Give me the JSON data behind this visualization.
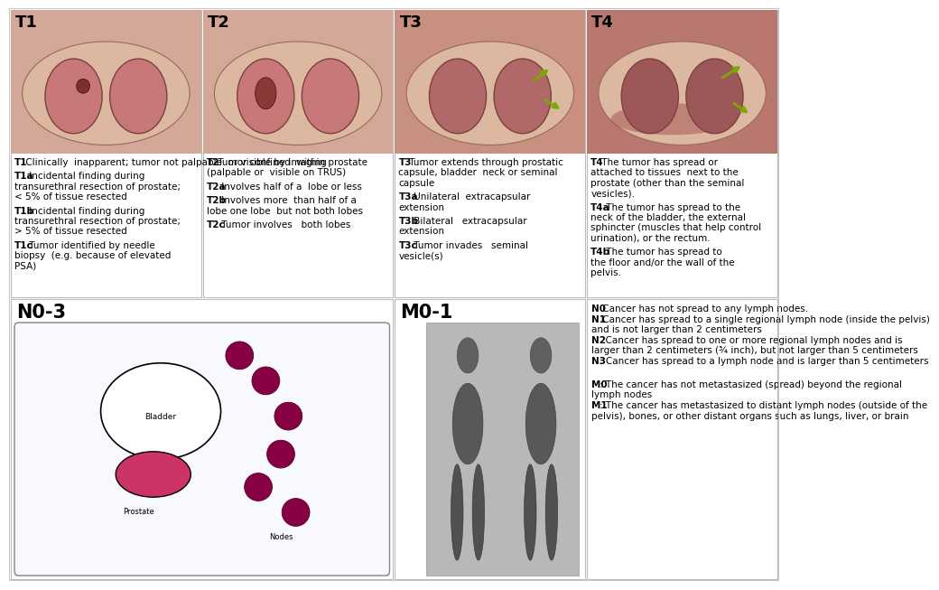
{
  "background_color": "#ffffff",
  "border_color": "#bbbbbb",
  "panels": {
    "top": {
      "keys": [
        "T1",
        "T2",
        "T3",
        "T4"
      ],
      "labels": [
        "T1",
        "T2",
        "T3",
        "T4"
      ],
      "texts": [
        [
          [
            "T1",
            " Clinically  inapparent; tumor not palpable  or visible by imaging"
          ],
          [
            "T1a",
            " Incidental finding during\ntransurethral resection of prostate;\n< 5% of tissue resected"
          ],
          [
            "T1b",
            " Incidental finding during\ntransurethral resection of prostate;\n> 5% of tissue resected"
          ],
          [
            "T1c",
            " Tumor identified by needle\nbiopsy  (e.g. because of elevated\nPSA)"
          ]
        ],
        [
          [
            "T2",
            " Tumor confined  within prostate\n(palpable or  visible on TRUS)"
          ],
          [
            "T2a",
            " Involves half of a  lobe or less"
          ],
          [
            "T2b",
            " Involves more  than half of a\nlobe one lobe  but not both lobes"
          ],
          [
            "T2c",
            " Tumor involves   both lobes"
          ]
        ],
        [
          [
            "T3",
            " Tumor extends through prostatic\ncapsule, bladder  neck or seminal\ncapsule"
          ],
          [
            "T3a",
            " Unilateral  extracapsular\nextension"
          ],
          [
            "T3b",
            " Bilateral   extracapsular\nextension"
          ],
          [
            "T3c",
            " Tumor invades   seminal\nvesicle(s)"
          ]
        ],
        [
          [
            "T4",
            " The tumor has spread or\nattached to tissues  next to the\nprostate (other than the seminal\nvesicles)."
          ],
          [
            "T4a",
            " The tumor has spread to the\nneck of the bladder, the external\nsphincter (muscles that help control\nurination), or the rectum."
          ],
          [
            "T4b",
            " The tumor has spread to\nthe floor and/or the wall of the\npelvis."
          ]
        ]
      ]
    },
    "bottom_text": [
      [
        "N0",
        " Cancer has not spread to any lymph nodes."
      ],
      [
        "N1",
        " Cancer has spread to a single regional lymph node (inside the pelvis)\nand is not larger than 2 centimeters"
      ],
      [
        "N2",
        "  Cancer has spread to one or more regional lymph nodes and is\nlarger than 2 centimeters (¾ inch), but not larger than 5 centimeters"
      ],
      [
        "N3",
        ": Cancer has spread to a lymph node and is larger than 5 centimeters"
      ],
      [
        "",
        ""
      ],
      [
        "M0",
        ": The cancer has not metastasized (spread) beyond the regional\nlymph nodes"
      ],
      [
        "M1",
        ": The cancer has metastasized to distant lymph nodes (outside of the\npelvis), bones, or other distant organs such as lungs, liver, or brain"
      ]
    ]
  }
}
